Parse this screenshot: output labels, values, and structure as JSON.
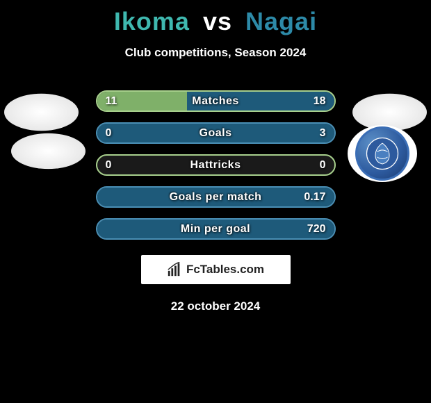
{
  "title": {
    "player1": "Ikoma",
    "vs": "vs",
    "player2": "Nagai"
  },
  "subtitle": "Club competitions, Season 2024",
  "colors": {
    "p1_accent": "#3fb8af",
    "p2_accent": "#2d8aa8",
    "bar_p1_fill": "#7fb069",
    "bar_p2_fill": "#1e5a7a",
    "bar_border_green": "#a8d08d",
    "bar_border_blue": "#4a8fb5",
    "background": "#000000",
    "text": "#ffffff"
  },
  "bars": [
    {
      "label": "Matches",
      "left_val": "11",
      "right_val": "18",
      "left_pct": 37.9,
      "right_pct": 62.1,
      "border": "#a8d08d",
      "fill_left": "#7fb069",
      "fill_right": "#1e5a7a"
    },
    {
      "label": "Goals",
      "left_val": "0",
      "right_val": "3",
      "left_pct": 0,
      "right_pct": 100,
      "border": "#4a8fb5",
      "fill_left": "#7fb069",
      "fill_right": "#1e5a7a"
    },
    {
      "label": "Hattricks",
      "left_val": "0",
      "right_val": "0",
      "left_pct": 0,
      "right_pct": 0,
      "border": "#a8d08d",
      "fill_left": "#7fb069",
      "fill_right": "#1e5a7a"
    },
    {
      "label": "Goals per match",
      "left_val": "",
      "right_val": "0.17",
      "left_pct": 0,
      "right_pct": 100,
      "border": "#4a8fb5",
      "fill_left": "#7fb069",
      "fill_right": "#1e5a7a"
    },
    {
      "label": "Min per goal",
      "left_val": "",
      "right_val": "720",
      "left_pct": 0,
      "right_pct": 100,
      "border": "#4a8fb5",
      "fill_left": "#7fb069",
      "fill_right": "#1e5a7a"
    }
  ],
  "branding": "FcTables.com",
  "date": "22 october 2024",
  "club_logo_label": "FC MITO HOLLY HOCK"
}
